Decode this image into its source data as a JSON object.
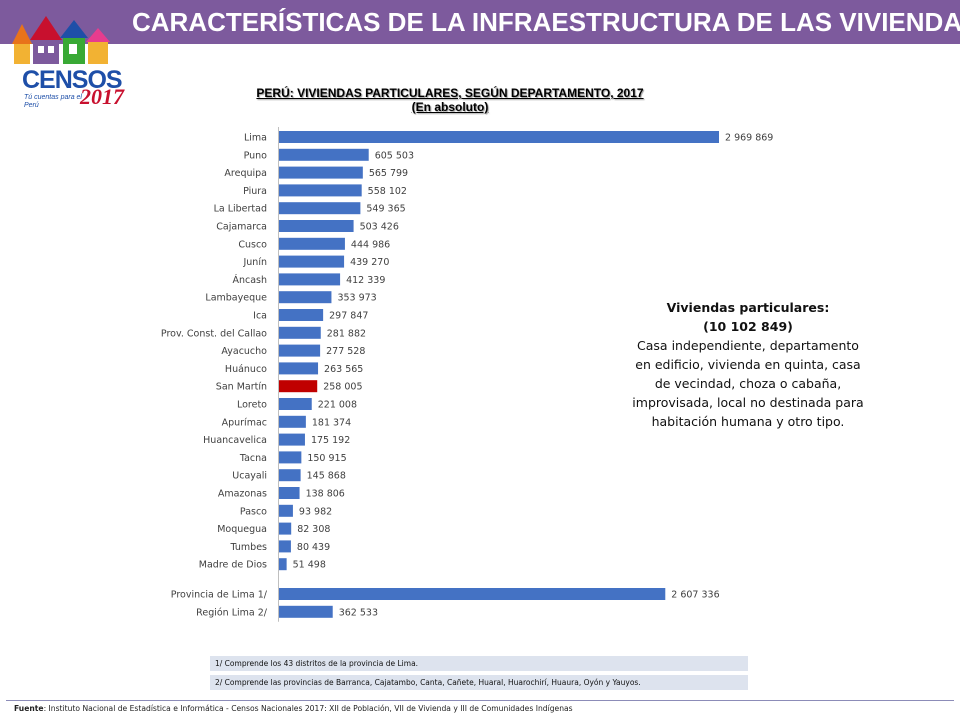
{
  "header": {
    "title": "CARACTERÍSTICAS DE LA INFRAESTRUCTURA DE LAS VIVIENDAS",
    "banner_color": "#7d5a9d"
  },
  "logo": {
    "word": "CENSOS",
    "year": "2017",
    "tagline": "Tú cuentas para el Perú"
  },
  "chart_data": {
    "type": "bar",
    "orientation": "horizontal",
    "title": "PERÚ: VIVIENDAS PARTICULARES, SEGÚN DEPARTAMENTO, 2017",
    "subtitle": "(En absoluto)",
    "bar_color": "#4472c4",
    "highlight_color": "#c00000",
    "highlight_category": "San Martín",
    "xlim": [
      0,
      3100000
    ],
    "grid": false,
    "categories": [
      "Lima",
      "Puno",
      "Arequipa",
      "Piura",
      "La Libertad",
      "Cajamarca",
      "Cusco",
      "Junín",
      "Áncash",
      "Lambayeque",
      "Ica",
      "Prov. Const. del Callao",
      "Ayacucho",
      "Huánuco",
      "San Martín",
      "Loreto",
      "Apurímac",
      "Huancavelica",
      "Tacna",
      "Ucayali",
      "Amazonas",
      "Pasco",
      "Moquegua",
      "Tumbes",
      "Madre de Dios",
      "Provincia de Lima 1/",
      "Región Lima 2/"
    ],
    "values": [
      2969869,
      605503,
      565799,
      558102,
      549365,
      503426,
      444986,
      439270,
      412339,
      353973,
      297847,
      281882,
      277528,
      263565,
      258005,
      221008,
      181374,
      175192,
      150915,
      145868,
      138806,
      93982,
      82308,
      80439,
      51498,
      2607336,
      362533
    ],
    "value_labels": [
      "2 969 869",
      "605 503",
      "565 799",
      "558 102",
      "549 365",
      "503 426",
      "444 986",
      "439 270",
      "412 339",
      "353 973",
      "297 847",
      "281 882",
      "277 528",
      "263 565",
      "258 005",
      "221 008",
      "181 374",
      "175 192",
      "150 915",
      "145 868",
      "138 806",
      "93 982",
      "82 308",
      "80 439",
      "51 498",
      "2 607 336",
      "362 533"
    ]
  },
  "callout": {
    "heading": "Viviendas particulares:",
    "total": "(10 102 849)",
    "text": "Casa independiente, departamento en edificio, vivienda en quinta, casa de vecindad, choza o cabaña, improvisada, local no destinada para habitación humana y otro tipo."
  },
  "notes": [
    "1/ Comprende los 43 distritos de la provincia de Lima.",
    "2/ Comprende las provincias de Barranca, Cajatambo, Canta, Cañete, Huaral, Huarochirí, Huaura, Oyón y Yauyos."
  ],
  "source": {
    "label": "Fuente",
    "text": ": Instituto Nacional de Estadística e Informática - Censos Nacionales 2017: XII de Población, VII de Vivienda y III de Comunidades Indígenas"
  }
}
